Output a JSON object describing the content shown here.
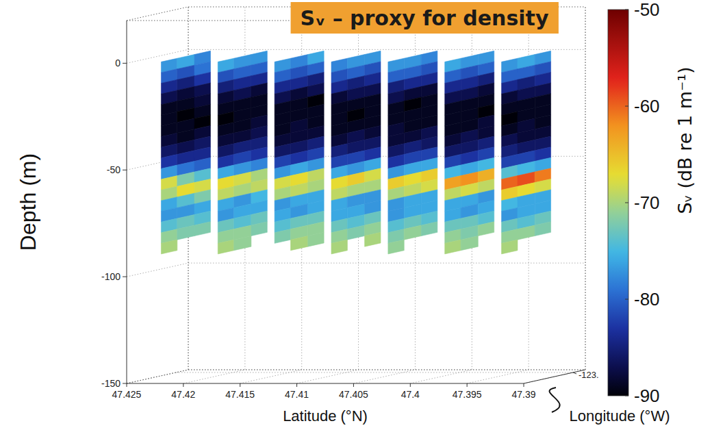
{
  "chart_data": {
    "type": "echogram_3d",
    "title": "Sᵥ – proxy for density",
    "x_label": "Latitude (°N)",
    "y_label": "Depth (m)",
    "z_label": "Longitude (°W)",
    "xlim": [
      47.425,
      47.39
    ],
    "xticks": [
      47.425,
      47.42,
      47.415,
      47.41,
      47.405,
      47.4,
      47.395,
      47.39
    ],
    "ylim": [
      -150,
      20
    ],
    "yticks": [
      0,
      -50,
      -100,
      -150
    ],
    "zlim": [
      -122.96,
      -123.01
    ],
    "zticks": [
      {
        "value": -123,
        "label": "-123."
      }
    ],
    "grid": true,
    "depth_bins": [
      0,
      -5,
      -10,
      -15,
      -20,
      -25,
      -30,
      -35,
      -40,
      -45,
      -50,
      -55,
      -60,
      -65,
      -70,
      -75,
      -80,
      -85,
      -90
    ],
    "curtains": [
      {
        "latitude": 47.4225,
        "lon_bins": [
          -122.965,
          -122.978,
          -122.992,
          -123.005
        ],
        "sv": [
          [
            -77,
            -76,
            -78
          ],
          [
            -80,
            -81,
            -79
          ],
          [
            -84,
            -85,
            -83
          ],
          [
            -87,
            -88,
            -87
          ],
          [
            -89,
            -89,
            -88
          ],
          [
            -89,
            -90,
            -89
          ],
          [
            -89,
            -89,
            -90
          ],
          [
            -88,
            -89,
            -88
          ],
          [
            -86,
            -87,
            -86
          ],
          [
            -83,
            -84,
            -84
          ],
          [
            -77,
            -79,
            -80
          ],
          [
            -68,
            -72,
            -74
          ],
          [
            -70,
            -67,
            -68
          ],
          [
            -76,
            -74,
            -72
          ],
          [
            -77,
            -77,
            -76
          ],
          [
            -74,
            -73,
            -74
          ],
          [
            -71,
            -72,
            -72
          ],
          [
            -70,
            null,
            null
          ]
        ]
      },
      {
        "latitude": 47.4175,
        "lon_bins": [
          -122.965,
          -122.978,
          -122.992,
          -123.005
        ],
        "sv": [
          [
            -76,
            -77,
            -77
          ],
          [
            -81,
            -80,
            -80
          ],
          [
            -85,
            -84,
            -84
          ],
          [
            -88,
            -87,
            -88
          ],
          [
            -89,
            -89,
            -89
          ],
          [
            -90,
            -89,
            -89
          ],
          [
            -89,
            -89,
            -88
          ],
          [
            -88,
            -88,
            -87
          ],
          [
            -86,
            -85,
            -85
          ],
          [
            -83,
            -82,
            -83
          ],
          [
            -76,
            -77,
            -78
          ],
          [
            -67,
            -68,
            -70
          ],
          [
            -69,
            -70,
            -69
          ],
          [
            -76,
            -77,
            -75
          ],
          [
            -77,
            -76,
            -76
          ],
          [
            -73,
            -74,
            -73
          ],
          [
            -71,
            -71,
            -72
          ],
          [
            -70,
            -71,
            null
          ]
        ]
      },
      {
        "latitude": 47.4125,
        "lon_bins": [
          -122.965,
          -122.978,
          -122.992,
          -123.005
        ],
        "sv": [
          [
            -77,
            -78,
            -76
          ],
          [
            -80,
            -81,
            -80
          ],
          [
            -84,
            -84,
            -85
          ],
          [
            -87,
            -88,
            -87
          ],
          [
            -89,
            -89,
            -90
          ],
          [
            -89,
            -89,
            -89
          ],
          [
            -89,
            -88,
            -89
          ],
          [
            -88,
            -88,
            -88
          ],
          [
            -86,
            -86,
            -85
          ],
          [
            -82,
            -83,
            -82
          ],
          [
            -77,
            -76,
            -77
          ],
          [
            -68,
            -67,
            -69
          ],
          [
            -70,
            -69,
            -70
          ],
          [
            -77,
            -76,
            -76
          ],
          [
            -76,
            -77,
            -76
          ],
          [
            -74,
            -73,
            -73
          ],
          [
            -72,
            -71,
            -71
          ],
          [
            null,
            -70,
            -71
          ]
        ]
      },
      {
        "latitude": 47.4075,
        "lon_bins": [
          -122.965,
          -122.978,
          -122.992,
          -123.005
        ],
        "sv": [
          [
            -78,
            -77,
            -77
          ],
          [
            -81,
            -80,
            -81
          ],
          [
            -84,
            -85,
            -84
          ],
          [
            -88,
            -87,
            -87
          ],
          [
            -89,
            -89,
            -89
          ],
          [
            -89,
            -90,
            -89
          ],
          [
            -89,
            -89,
            -89
          ],
          [
            -88,
            -87,
            -88
          ],
          [
            -85,
            -86,
            -86
          ],
          [
            -82,
            -82,
            -83
          ],
          [
            -76,
            -77,
            -76
          ],
          [
            -67,
            -66,
            -68
          ],
          [
            -69,
            -70,
            -70
          ],
          [
            -76,
            -77,
            -77
          ],
          [
            -76,
            -76,
            -77
          ],
          [
            -73,
            -74,
            -73
          ],
          [
            -71,
            -72,
            -71
          ],
          [
            -70,
            null,
            -70
          ]
        ]
      },
      {
        "latitude": 47.4025,
        "lon_bins": [
          -122.965,
          -122.978,
          -122.992,
          -123.005
        ],
        "sv": [
          [
            -77,
            -77,
            -78
          ],
          [
            -80,
            -80,
            -81
          ],
          [
            -85,
            -84,
            -84
          ],
          [
            -87,
            -88,
            -88
          ],
          [
            -89,
            -90,
            -89
          ],
          [
            -89,
            -89,
            -89
          ],
          [
            -88,
            -89,
            -89
          ],
          [
            -88,
            -88,
            -87
          ],
          [
            -86,
            -85,
            -86
          ],
          [
            -83,
            -82,
            -82
          ],
          [
            -77,
            -76,
            -76
          ],
          [
            -66,
            -67,
            -66
          ],
          [
            -70,
            -69,
            -68
          ],
          [
            -77,
            -76,
            -76
          ],
          [
            -77,
            -76,
            -76
          ],
          [
            -74,
            -73,
            -74
          ],
          [
            -72,
            -71,
            -72
          ],
          [
            -71,
            null,
            null
          ]
        ]
      },
      {
        "latitude": 47.3975,
        "lon_bins": [
          -122.965,
          -122.978,
          -122.992,
          -123.005
        ],
        "sv": [
          [
            -76,
            -77,
            -77
          ],
          [
            -80,
            -81,
            -80
          ],
          [
            -84,
            -84,
            -85
          ],
          [
            -87,
            -87,
            -88
          ],
          [
            -89,
            -89,
            -89
          ],
          [
            -89,
            -89,
            -90
          ],
          [
            -89,
            -89,
            -88
          ],
          [
            -88,
            -87,
            -88
          ],
          [
            -86,
            -86,
            -85
          ],
          [
            -82,
            -83,
            -82
          ],
          [
            -75,
            -76,
            -75
          ],
          [
            -63,
            -62,
            -64
          ],
          [
            -69,
            -68,
            -69
          ],
          [
            -76,
            -76,
            -77
          ],
          [
            -76,
            -77,
            -76
          ],
          [
            -73,
            -73,
            -74
          ],
          [
            -71,
            -72,
            -71
          ],
          [
            -70,
            -71,
            null
          ]
        ]
      },
      {
        "latitude": 47.3925,
        "lon_bins": [
          -122.965,
          -122.978,
          -122.992,
          -123.005
        ],
        "sv": [
          [
            -77,
            -76,
            -77
          ],
          [
            -80,
            -80,
            -81
          ],
          [
            -84,
            -85,
            -84
          ],
          [
            -88,
            -87,
            -87
          ],
          [
            -89,
            -89,
            -89
          ],
          [
            -90,
            -89,
            -89
          ],
          [
            -89,
            -88,
            -89
          ],
          [
            -87,
            -88,
            -88
          ],
          [
            -85,
            -86,
            -86
          ],
          [
            -82,
            -82,
            -83
          ],
          [
            -74,
            -75,
            -76
          ],
          [
            -60,
            -59,
            -61
          ],
          [
            -66,
            -67,
            -68
          ],
          [
            -75,
            -76,
            -76
          ],
          [
            -77,
            -76,
            -76
          ],
          [
            -73,
            -74,
            -73
          ],
          [
            -71,
            -71,
            -72
          ],
          [
            -70,
            null,
            null
          ]
        ]
      }
    ],
    "colorbar": {
      "range": [
        -90,
        -50
      ],
      "ticks": [
        -50,
        -60,
        -70,
        -80,
        -90
      ],
      "label": "Sᵥ (dB re 1 m⁻¹)"
    }
  }
}
